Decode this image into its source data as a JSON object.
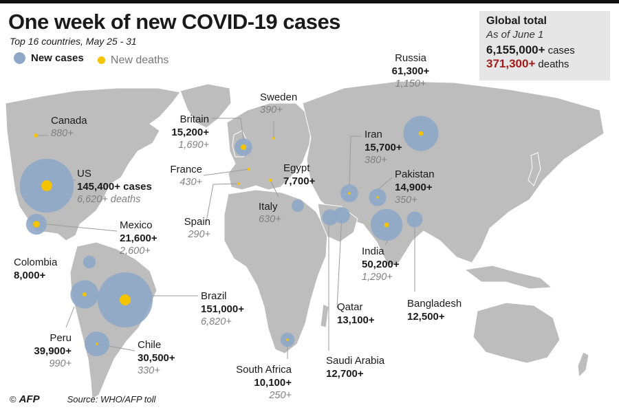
{
  "title": "One week of new COVID-19 cases",
  "subtitle": "Top 16 countries, May 25 - 31",
  "legend": {
    "cases": "New cases",
    "deaths": "New deaths"
  },
  "global": {
    "title": "Global total",
    "as_of": "As of June 1",
    "cases_value": "6,155,000+",
    "cases_unit": "cases",
    "deaths_value": "371,300+",
    "deaths_unit": "deaths"
  },
  "colors": {
    "case_bubble": "#8da7c7",
    "death_dot": "#f5c400",
    "land": "#bdbdbd",
    "deaths_total": "#a31a1a"
  },
  "countries": [
    {
      "name": "Canada",
      "cases": "",
      "deaths": "880+",
      "cases_value": 0,
      "deaths_value": 880
    },
    {
      "name": "US",
      "cases": "145,400+ cases",
      "deaths": "6,620+ deaths",
      "cases_value": 145400,
      "deaths_value": 6620
    },
    {
      "name": "Mexico",
      "cases": "21,600+",
      "deaths": "2,600+",
      "cases_value": 21600,
      "deaths_value": 2600
    },
    {
      "name": "Colombia",
      "cases": "8,000+",
      "deaths": "",
      "cases_value": 8000,
      "deaths_value": 0
    },
    {
      "name": "Brazil",
      "cases": "151,000+",
      "deaths": "6,820+",
      "cases_value": 151000,
      "deaths_value": 6820
    },
    {
      "name": "Peru",
      "cases": "39,900+",
      "deaths": "990+",
      "cases_value": 39900,
      "deaths_value": 990
    },
    {
      "name": "Chile",
      "cases": "30,500+",
      "deaths": "330+",
      "cases_value": 30500,
      "deaths_value": 330
    },
    {
      "name": "Britain",
      "cases": "15,200+",
      "deaths": "1,690+",
      "cases_value": 15200,
      "deaths_value": 1690
    },
    {
      "name": "Sweden",
      "cases": "",
      "deaths": "390+",
      "cases_value": 0,
      "deaths_value": 390
    },
    {
      "name": "France",
      "cases": "",
      "deaths": "430+",
      "cases_value": 0,
      "deaths_value": 430
    },
    {
      "name": "Spain",
      "cases": "",
      "deaths": "290+",
      "cases_value": 0,
      "deaths_value": 290
    },
    {
      "name": "Italy",
      "cases": "",
      "deaths": "630+",
      "cases_value": 0,
      "deaths_value": 630
    },
    {
      "name": "Egypt",
      "cases": "7,700+",
      "deaths": "",
      "cases_value": 7700,
      "deaths_value": 0
    },
    {
      "name": "Russia",
      "cases": "61,300+",
      "deaths": "1,150+",
      "cases_value": 61300,
      "deaths_value": 1150
    },
    {
      "name": "Iran",
      "cases": "15,700+",
      "deaths": "380+",
      "cases_value": 15700,
      "deaths_value": 380
    },
    {
      "name": "Pakistan",
      "cases": "14,900+",
      "deaths": "350+",
      "cases_value": 14900,
      "deaths_value": 350
    },
    {
      "name": "India",
      "cases": "50,200+",
      "deaths": "1,290+",
      "cases_value": 50200,
      "deaths_value": 1290
    },
    {
      "name": "Qatar",
      "cases": "13,100+",
      "deaths": "",
      "cases_value": 13100,
      "deaths_value": 0
    },
    {
      "name": "Saudi Arabia",
      "cases": "12,700+",
      "deaths": "",
      "cases_value": 12700,
      "deaths_value": 0
    },
    {
      "name": "Bangladesh",
      "cases": "12,500+",
      "deaths": "",
      "cases_value": 12500,
      "deaths_value": 0
    },
    {
      "name": "South Africa",
      "cases": "10,100+",
      "deaths": "250+",
      "cases_value": 10100,
      "deaths_value": 250
    }
  ],
  "footer": {
    "copyright": "©",
    "logo": "AFP",
    "source": "Source: WHO/AFP toll"
  }
}
